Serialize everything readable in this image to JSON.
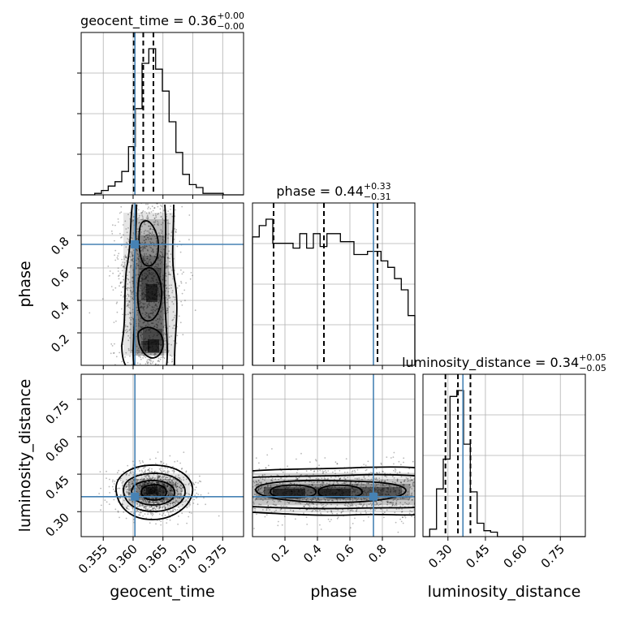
{
  "chart_data": {
    "type": "corner",
    "params": [
      "geocent_time",
      "phase",
      "luminosity_distance"
    ],
    "titles": {
      "geocent_time": {
        "name": "geocent_time",
        "median": "0.36",
        "plus": "+0.00",
        "minus": "−0.00"
      },
      "phase": {
        "name": "phase",
        "median": "0.44",
        "plus": "+0.33",
        "minus": "−0.31"
      },
      "luminosity_distance": {
        "name": "luminosity_distance",
        "median": "0.34",
        "plus": "+0.05",
        "minus": "−0.05"
      }
    },
    "axis_labels": {
      "geocent_time": "geocent_time",
      "phase": "phase",
      "luminosity_distance": "luminosity_distance"
    },
    "ranges": {
      "geocent_time": [
        0.3513,
        0.3785
      ],
      "phase": [
        0.0,
        1.0
      ],
      "luminosity_distance": [
        0.2,
        0.85
      ]
    },
    "ticks": {
      "geocent_time": [
        {
          "v": 0.355,
          "label": "0.355"
        },
        {
          "v": 0.36,
          "label": "0.360"
        },
        {
          "v": 0.365,
          "label": "0.365"
        },
        {
          "v": 0.37,
          "label": "0.370"
        },
        {
          "v": 0.375,
          "label": "0.375"
        }
      ],
      "phase": [
        {
          "v": 0.2,
          "label": "0.2"
        },
        {
          "v": 0.4,
          "label": "0.4"
        },
        {
          "v": 0.6,
          "label": "0.6"
        },
        {
          "v": 0.8,
          "label": "0.8"
        }
      ],
      "luminosity_distance": [
        {
          "v": 0.3,
          "label": "0.30"
        },
        {
          "v": 0.45,
          "label": "0.45"
        },
        {
          "v": 0.6,
          "label": "0.60"
        },
        {
          "v": 0.75,
          "label": "0.75"
        }
      ]
    },
    "truths": {
      "geocent_time": 0.3603,
      "phase": 0.745,
      "luminosity_distance": 0.36
    },
    "quantiles": {
      "geocent_time": [
        0.3601,
        0.3617,
        0.3634
      ],
      "phase": [
        0.13,
        0.44,
        0.77
      ],
      "luminosity_distance": [
        0.29,
        0.34,
        0.39
      ]
    },
    "hist1d": {
      "geocent_time": [
        0.0,
        0.0,
        0.01,
        0.03,
        0.06,
        0.09,
        0.16,
        0.33,
        0.59,
        0.9,
        1.0,
        0.86,
        0.71,
        0.5,
        0.29,
        0.14,
        0.07,
        0.05,
        0.01,
        0.01,
        0.01,
        0.0,
        0.0,
        0.0
      ],
      "phase": [
        0.8,
        0.87,
        0.91,
        0.76,
        0.76,
        0.76,
        0.73,
        0.82,
        0.73,
        0.82,
        0.74,
        0.82,
        0.82,
        0.77,
        0.77,
        0.69,
        0.69,
        0.71,
        0.71,
        0.65,
        0.61,
        0.54,
        0.47,
        0.31
      ],
      "luminosity_distance": [
        0.0,
        0.05,
        0.32,
        0.52,
        0.94,
        0.98,
        0.62,
        0.3,
        0.09,
        0.04,
        0.03,
        0.0,
        0.0,
        0.0,
        0.0,
        0.0,
        0.0,
        0.0,
        0.0,
        0.0,
        0.0,
        0.0,
        0.0,
        0.0
      ]
    }
  }
}
